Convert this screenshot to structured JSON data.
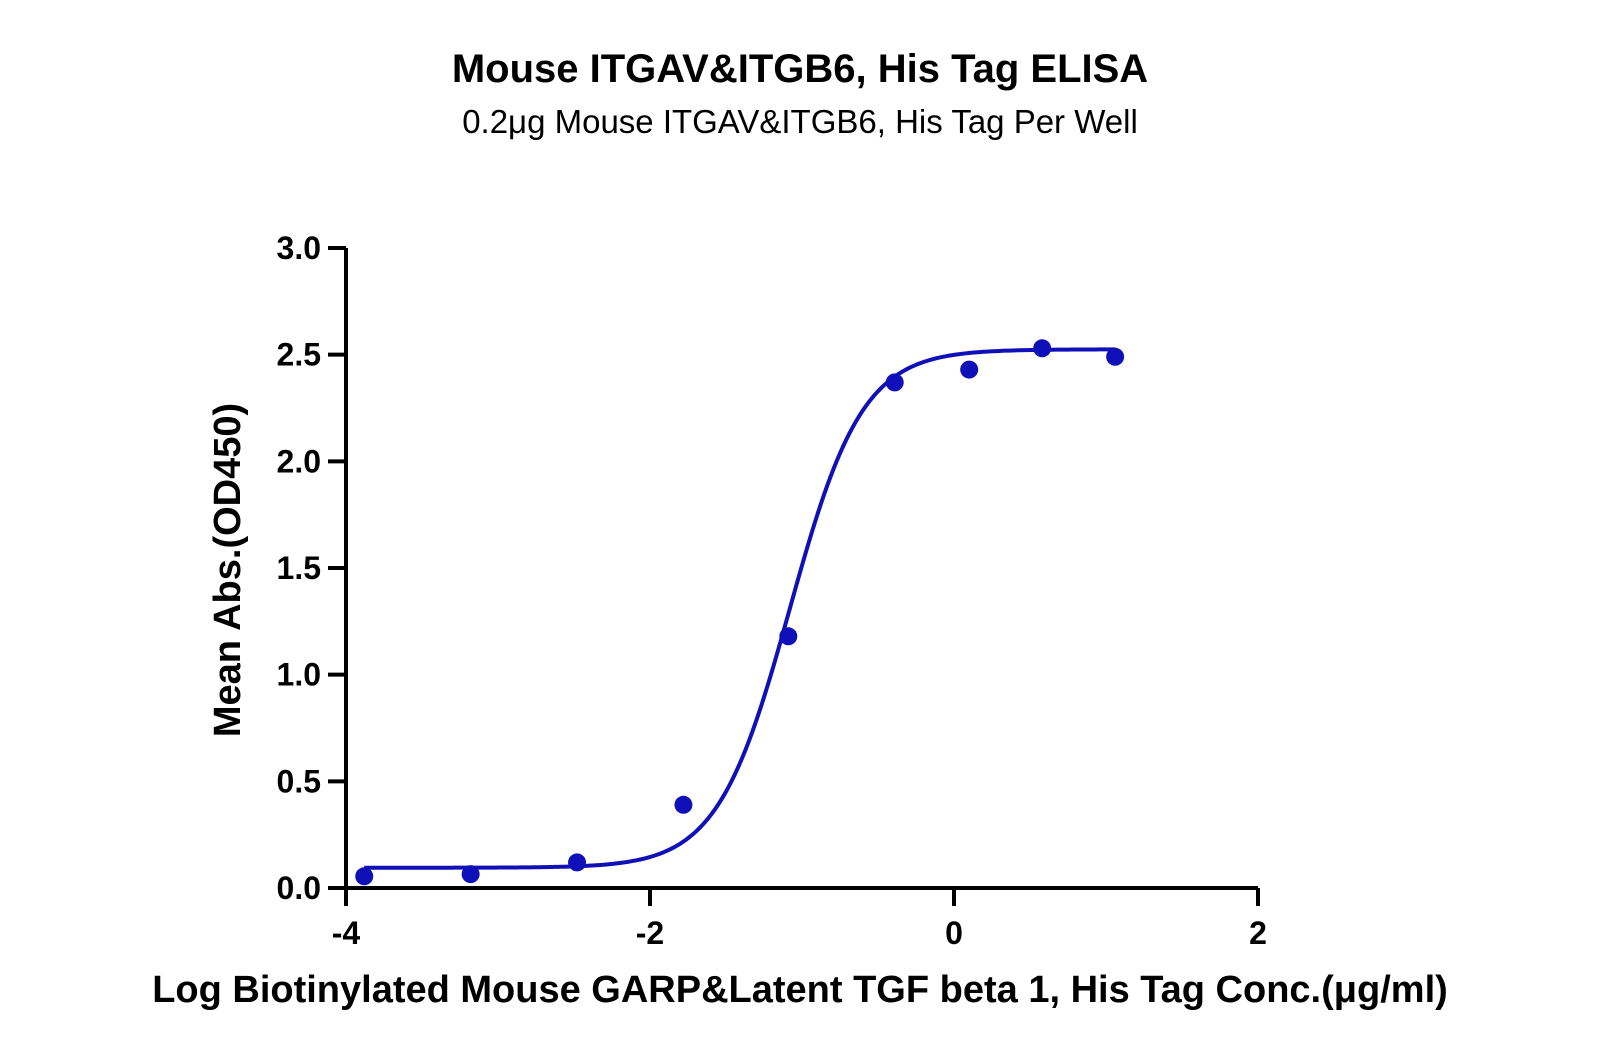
{
  "chart_data": {
    "type": "scatter",
    "title": "Mouse ITGAV&ITGB6, His Tag ELISA",
    "subtitle": "0.2μg Mouse ITGAV&ITGB6, His Tag Per Well",
    "xlabel": "Log Biotinylated Mouse GARP&Latent TGF beta 1, His Tag Conc.(μg/ml)",
    "ylabel": "Mean Abs.(OD450)",
    "xlim": [
      -4,
      2
    ],
    "ylim": [
      0,
      3
    ],
    "x_ticks": [
      "-4",
      "-2",
      "0",
      "2"
    ],
    "y_ticks": [
      "0.0",
      "0.5",
      "1.0",
      "1.5",
      "2.0",
      "2.5",
      "3.0"
    ],
    "grid": false,
    "legend": "none",
    "color": "#1010b8",
    "series": [
      {
        "x": [
          -3.88,
          -3.18,
          -2.48,
          -1.78,
          -1.09,
          -0.39,
          0.1,
          0.58,
          1.06
        ],
        "y": [
          0.055,
          0.065,
          0.12,
          0.39,
          1.18,
          2.37,
          2.43,
          2.53,
          2.49
        ]
      }
    ],
    "fit_curve": {
      "model": "4PL",
      "bottom": 0.095,
      "top": 2.525,
      "log_ec50": -1.08,
      "hill_slope": 1.82,
      "x_range": [
        -3.88,
        1.06
      ]
    }
  }
}
